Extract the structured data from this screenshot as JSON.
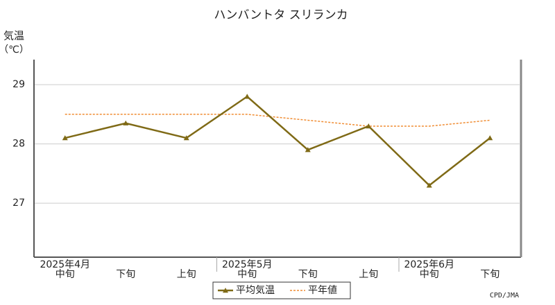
{
  "chart_data": {
    "type": "line",
    "title": "ハンバントタ スリランカ",
    "y_label": [
      "気温",
      "（℃）"
    ],
    "source": "CPD/JMA",
    "categories": [
      "中旬",
      "下旬",
      "上旬",
      "中旬",
      "下旬",
      "上旬",
      "中旬",
      "下旬"
    ],
    "months": [
      "2025年4月",
      null,
      null,
      "2025年5月",
      null,
      null,
      "2025年6月",
      null
    ],
    "series": [
      {
        "name": "平均気温",
        "color": "#7f6a16",
        "style": "solid",
        "marker": true,
        "values": [
          28.1,
          28.35,
          28.1,
          28.8,
          27.9,
          28.3,
          27.3,
          28.1
        ]
      },
      {
        "name": "平年値",
        "color": "#f08c32",
        "style": "dashed",
        "marker": false,
        "values": [
          28.5,
          28.5,
          28.5,
          28.5,
          28.4,
          28.3,
          28.3,
          28.4
        ]
      }
    ],
    "ylim": [
      26.1,
      29.4
    ],
    "yticks": [
      27,
      28,
      29
    ],
    "grid": true
  }
}
